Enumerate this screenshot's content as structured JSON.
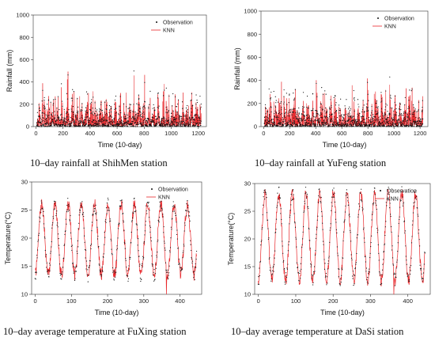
{
  "colors": {
    "observation": "#111111",
    "model": "#e8272b",
    "axis": "#333333"
  },
  "panels": [
    {
      "caption": "10–day rainfall at ShihMen station",
      "chart_data": {
        "type": "line",
        "title": "",
        "xlabel": "Time (10-day)",
        "ylabel": "Rainfall (mm)",
        "xlim": [
          -20,
          1260
        ],
        "ylim": [
          0,
          1000
        ],
        "xticks": [
          0,
          200,
          400,
          600,
          800,
          1000,
          1200
        ],
        "yticks": [
          0,
          200,
          400,
          600,
          800,
          1000
        ],
        "legend_position": "top-right",
        "series": [
          {
            "name": "Observation",
            "style": "scatter",
            "n": 1240,
            "range": [
              0,
              850
            ]
          },
          {
            "name": "KNN",
            "style": "line",
            "n": 1240,
            "range": [
              0,
              590
            ]
          }
        ]
      }
    },
    {
      "caption": "10–day rainfall at YuFeng station",
      "chart_data": {
        "type": "line",
        "title": "",
        "xlabel": "Time (10-day)",
        "ylabel": "Rainfall (mm)",
        "xlim": [
          -20,
          1260
        ],
        "ylim": [
          0,
          1000
        ],
        "xticks": [
          0,
          200,
          400,
          600,
          800,
          1000,
          1200
        ],
        "yticks": [
          0,
          200,
          400,
          600,
          800,
          1000
        ],
        "legend_position": "top-right",
        "series": [
          {
            "name": "Observation",
            "style": "scatter",
            "n": 1240,
            "range": [
              0,
              1000
            ]
          },
          {
            "name": "KNN",
            "style": "line",
            "n": 1240,
            "range": [
              0,
              880
            ]
          }
        ]
      }
    },
    {
      "caption": "10–day average temperature at FuXing station",
      "chart_data": {
        "type": "line",
        "title": "",
        "xlabel": "Time (10-day)",
        "ylabel": "Temperature(°C)",
        "xlim": [
          -10,
          460
        ],
        "ylim": [
          10,
          30
        ],
        "xticks": [
          0,
          100,
          200,
          300,
          400
        ],
        "yticks": [
          10,
          15,
          20,
          25,
          30
        ],
        "legend_position": "top-right",
        "series": [
          {
            "name": "Observation",
            "style": "scatter",
            "n": 440,
            "range": [
              12,
              27
            ]
          },
          {
            "name": "KNN",
            "style": "line",
            "n": 440,
            "range": [
              10,
              26.5
            ]
          }
        ]
      }
    },
    {
      "caption": "10–day average temperature at DaSi station",
      "chart_data": {
        "type": "line",
        "title": "",
        "xlabel": "Time (10-day)",
        "ylabel": "Temperature(°C)",
        "xlim": [
          -10,
          460
        ],
        "ylim": [
          10,
          30
        ],
        "xticks": [
          0,
          100,
          200,
          300,
          400
        ],
        "yticks": [
          10,
          15,
          20,
          25,
          30
        ],
        "legend_position": "top-right",
        "series": [
          {
            "name": "Observation",
            "style": "scatter",
            "n": 440,
            "range": [
              11,
              29
            ]
          },
          {
            "name": "KNN",
            "style": "line",
            "n": 440,
            "range": [
              10,
              28.5
            ]
          }
        ]
      }
    }
  ]
}
